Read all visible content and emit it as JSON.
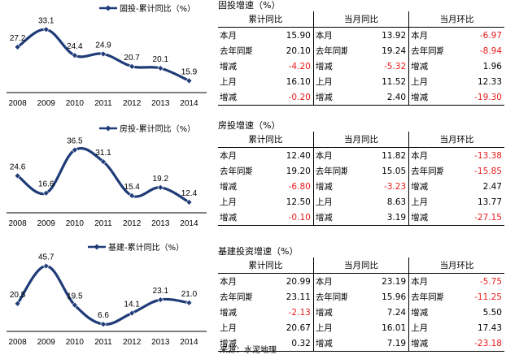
{
  "chart_data": [
    {
      "type": "line",
      "legend": "固投-累计同比（%）",
      "categories": [
        "2008",
        "2009",
        "2010",
        "2011",
        "2012",
        "2013",
        "2014"
      ],
      "series": [
        {
          "name": "固投-累计同比（%）",
          "values": [
            27.2,
            33.1,
            24.4,
            24.9,
            20.7,
            20.1,
            15.9
          ]
        }
      ],
      "value_labels": [
        "27.2",
        "33.1",
        "24.4",
        "24.9",
        "20.7",
        "20.1",
        "15.9"
      ],
      "ylim": [
        13,
        37
      ],
      "grid": false,
      "legend_position": "top"
    },
    {
      "type": "line",
      "legend": "房投-累计同比（%）",
      "categories": [
        "2008",
        "2009",
        "2010",
        "2011",
        "2012",
        "2013",
        "2014"
      ],
      "series": [
        {
          "name": "房投-累计同比（%）",
          "values": [
            24.6,
            16.6,
            36.5,
            31.1,
            15.4,
            19.2,
            12.4
          ]
        }
      ],
      "value_labels": [
        "24.6",
        "16.6",
        "36.5",
        "31.1",
        "15.4",
        "19.2",
        "12.4"
      ],
      "ylim": [
        9,
        42
      ],
      "grid": false,
      "legend_position": "top"
    },
    {
      "type": "line",
      "legend": "基建-累计同比（%）",
      "categories": [
        "2008",
        "2009",
        "2010",
        "2011",
        "2012",
        "2013",
        "2014"
      ],
      "series": [
        {
          "name": "基建-累计同比（%）",
          "values": [
            20.5,
            45.7,
            19.5,
            6.6,
            14.1,
            23.1,
            21.0
          ]
        }
      ],
      "value_labels": [
        "20.5",
        "45.7",
        "19.5",
        "6.6",
        "14.1",
        "23.1",
        "21.0"
      ],
      "ylim": [
        4,
        52
      ],
      "grid": false,
      "legend_position": "top"
    }
  ],
  "tables": [
    {
      "title": "固投增速（%）",
      "headers": [
        "累计同比",
        "当月同比",
        "当月环比"
      ],
      "rows": [
        {
          "label": "本月",
          "v1": "15.90",
          "label2": "本月",
          "v2": "13.92",
          "label3": "本月",
          "v3": "-6.97"
        },
        {
          "label": "去年同期",
          "v1": "20.10",
          "label2": "去年同期",
          "v2": "19.24",
          "label3": "去年同期",
          "v3": "-8.94"
        },
        {
          "label": "增减",
          "v1": "-4.20",
          "label2": "增减",
          "v2": "-5.32",
          "label3": "增减",
          "v3": "1.96"
        },
        {
          "label": "上月",
          "v1": "16.10",
          "label2": "上月",
          "v2": "11.52",
          "label3": "上月",
          "v3": "12.33"
        },
        {
          "label": "增减",
          "v1": "-0.20",
          "label2": "增减",
          "v2": "2.40",
          "label3": "增减",
          "v3": "-19.30"
        }
      ]
    },
    {
      "title": "房投增速（%）",
      "headers": [
        "累计同比",
        "当月同比",
        "当月环比"
      ],
      "rows": [
        {
          "label": "本月",
          "v1": "12.40",
          "label2": "本月",
          "v2": "11.82",
          "label3": "本月",
          "v3": "-13.38"
        },
        {
          "label": "去年同期",
          "v1": "19.20",
          "label2": "去年同期",
          "v2": "15.05",
          "label3": "去年同期",
          "v3": "-15.85"
        },
        {
          "label": "增减",
          "v1": "-6.80",
          "label2": "增减",
          "v2": "-3.23",
          "label3": "增减",
          "v3": "2.47"
        },
        {
          "label": "上月",
          "v1": "12.50",
          "label2": "上月",
          "v2": "8.63",
          "label3": "上月",
          "v3": "13.77"
        },
        {
          "label": "增减",
          "v1": "-0.10",
          "label2": "增减",
          "v2": "3.19",
          "label3": "增减",
          "v3": "-27.15"
        }
      ]
    },
    {
      "title": "基建投资增速（%）",
      "headers": [
        "累计同比",
        "当月同比",
        "当月环比"
      ],
      "rows": [
        {
          "label": "本月",
          "v1": "20.99",
          "label2": "本月",
          "v2": "23.19",
          "label3": "本月",
          "v3": "-5.75"
        },
        {
          "label": "去年同期",
          "v1": "23.11",
          "label2": "去年同期",
          "v2": "15.96",
          "label3": "去年同期",
          "v3": "-11.25"
        },
        {
          "label": "增减",
          "v1": "-2.13",
          "label2": "增减",
          "v2": "7.24",
          "label3": "增减",
          "v3": "5.50"
        },
        {
          "label": "上月",
          "v1": "20.67",
          "label2": "上月",
          "v2": "16.01",
          "label3": "上月",
          "v3": "17.43"
        },
        {
          "label": "增减",
          "v1": "0.32",
          "label2": "增减",
          "v2": "7.19",
          "label3": "增减",
          "v3": "-23.18"
        }
      ]
    }
  ],
  "source": "来源：水泥地理",
  "colors": {
    "line": "#1f3c78",
    "negative": "#e81b1b",
    "text": "#000000"
  }
}
